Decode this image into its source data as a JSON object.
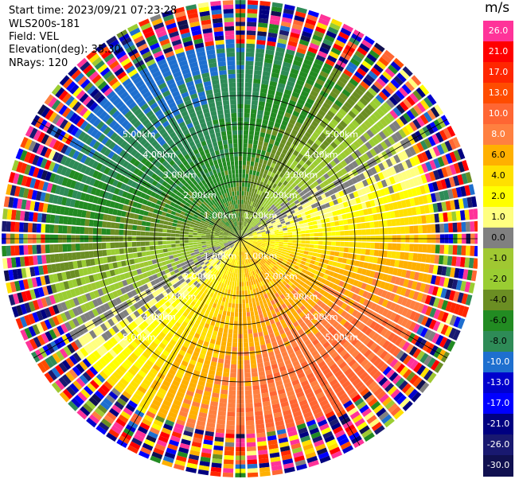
{
  "header": {
    "start_time": "Start time: 2023/09/21 07:23:28",
    "instrument": "WLS200s-181",
    "field": "Field: VEL",
    "elevation": "Elevation(deg): 35.30",
    "nrays": "NRays: 120"
  },
  "chart_data": {
    "type": "heatmap",
    "projection": "polar-ppi",
    "field": "VEL",
    "unit": "m/s",
    "n_rays": 120,
    "max_range_km": 5.0,
    "range_rings_km": [
      1.0,
      2.0,
      3.0,
      4.0,
      5.0
    ],
    "range_ring_labels": [
      "1.00km",
      "2.00km",
      "3.00km",
      "4.00km",
      "5.00km"
    ],
    "colorbar": {
      "title": "m/s",
      "tick_labels": [
        "26.0",
        "21.0",
        "17.0",
        "13.0",
        "10.0",
        "8.0",
        "6.0",
        "4.0",
        "2.0",
        "1.0",
        "0.0",
        "-1.0",
        "-2.0",
        "-4.0",
        "-6.0",
        "-8.0",
        "-10.0",
        "-13.0",
        "-17.0",
        "-21.0",
        "-26.0",
        "-30.0"
      ],
      "colors": [
        "#ff3399",
        "#ff0000",
        "#ff2600",
        "#ff4c00",
        "#ff6633",
        "#ff8040",
        "#ffb000",
        "#ffe000",
        "#ffff00",
        "#ffff80",
        "#808080",
        "#a0c832",
        "#9acd32",
        "#6b8e23",
        "#228b22",
        "#2e8b57",
        "#1e6fcf",
        "#0000cd",
        "#0000ff",
        "#000080",
        "#191970",
        "#101050"
      ]
    },
    "velocity_pattern": {
      "description_free": true,
      "dominant_positive_azimuth_deg": 150,
      "dominant_negative_azimuth_deg": 300
    }
  }
}
